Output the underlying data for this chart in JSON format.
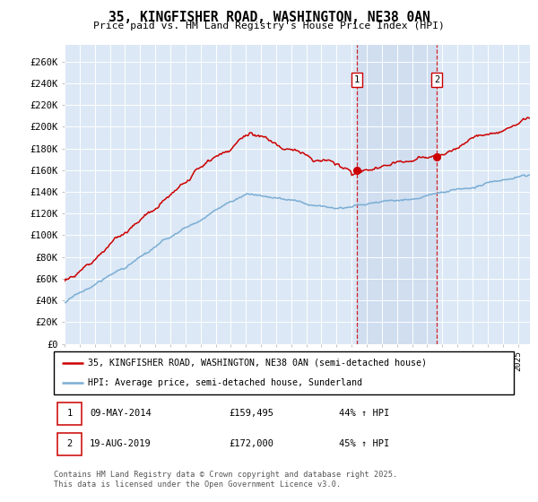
{
  "title": "35, KINGFISHER ROAD, WASHINGTON, NE38 0AN",
  "subtitle": "Price paid vs. HM Land Registry's House Price Index (HPI)",
  "ylabel_ticks": [
    "£0",
    "£20K",
    "£40K",
    "£60K",
    "£80K",
    "£100K",
    "£120K",
    "£140K",
    "£160K",
    "£180K",
    "£200K",
    "£220K",
    "£240K",
    "£260K"
  ],
  "ytick_values": [
    0,
    20000,
    40000,
    60000,
    80000,
    100000,
    120000,
    140000,
    160000,
    180000,
    200000,
    220000,
    240000,
    260000
  ],
  "ylim": [
    0,
    275000
  ],
  "xlim_start": 1995.0,
  "xlim_end": 2025.8,
  "plot_bg_color": "#dce8f5",
  "grid_color": "#ffffff",
  "line_color_red": "#cc0000",
  "line_color_blue": "#7aadd4",
  "sale1_x": 2014.36,
  "sale1_y": 159495,
  "sale2_x": 2019.63,
  "sale2_y": 172000,
  "sale1_label": "09-MAY-2014",
  "sale1_price": "£159,495",
  "sale1_hpi": "44% ↑ HPI",
  "sale2_label": "19-AUG-2019",
  "sale2_price": "£172,000",
  "sale2_hpi": "45% ↑ HPI",
  "legend_label_red": "35, KINGFISHER ROAD, WASHINGTON, NE38 0AN (semi-detached house)",
  "legend_label_blue": "HPI: Average price, semi-detached house, Sunderland",
  "footnote": "Contains HM Land Registry data © Crown copyright and database right 2025.\nThis data is licensed under the Open Government Licence v3.0."
}
